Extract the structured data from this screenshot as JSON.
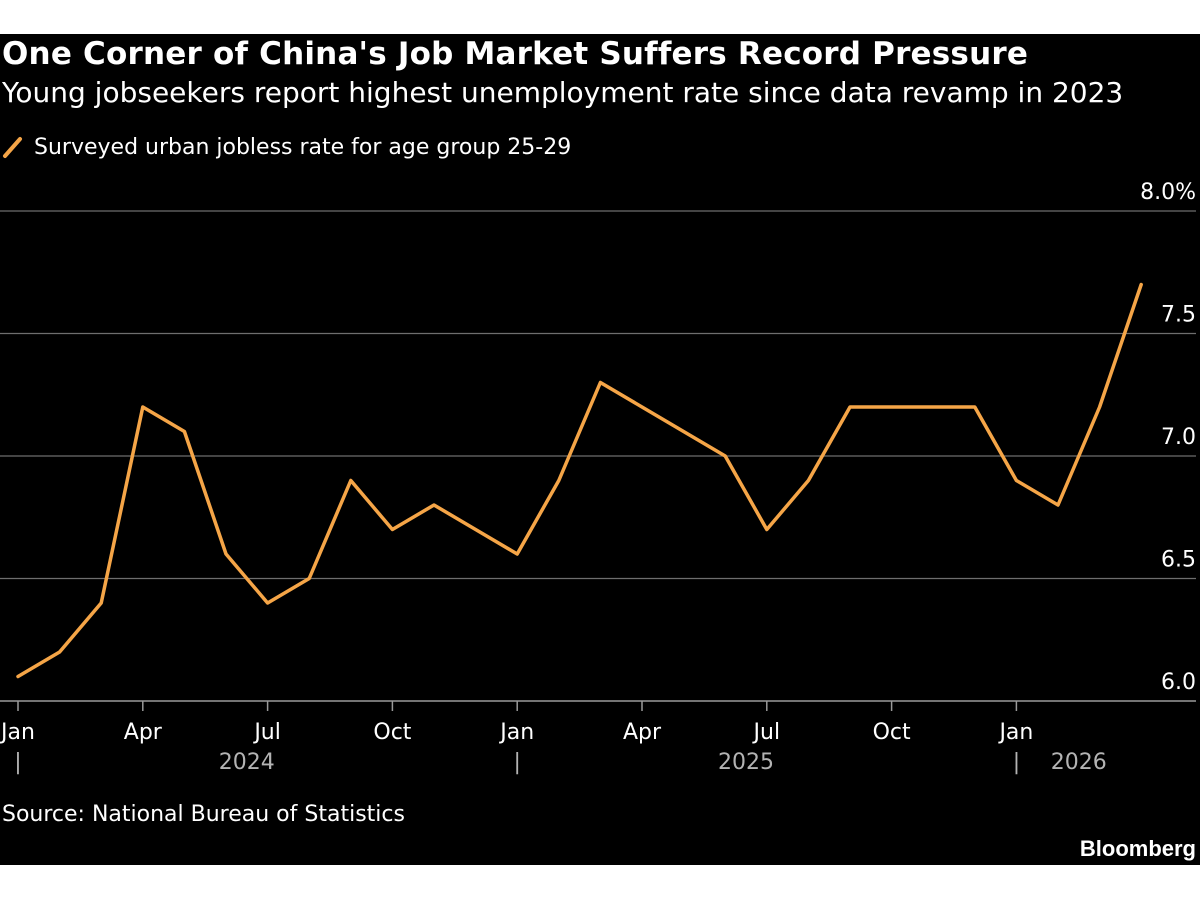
{
  "chart_data": {
    "type": "line",
    "title": "One Corner of China's Job Market Suffers Record Pressure",
    "subtitle": "Young jobseekers report highest unemployment rate since data revamp in 2023",
    "series": [
      {
        "name": "Surveyed urban jobless rate for age group 25-29",
        "color": "#f5a547",
        "x": [
          "2024-01",
          "2024-02",
          "2024-03",
          "2024-04",
          "2024-05",
          "2024-06",
          "2024-07",
          "2024-08",
          "2024-09",
          "2024-10",
          "2024-11",
          "2024-12",
          "2025-01",
          "2025-02",
          "2025-03",
          "2025-04",
          "2025-05",
          "2025-06",
          "2025-07",
          "2025-08",
          "2025-09",
          "2025-10",
          "2025-11",
          "2025-12",
          "2026-01",
          "2026-02",
          "2026-03",
          "2026-04"
        ],
        "values": [
          6.1,
          6.2,
          6.4,
          7.2,
          7.1,
          6.6,
          6.4,
          6.5,
          6.9,
          6.7,
          6.8,
          6.7,
          6.6,
          6.9,
          7.3,
          7.2,
          7.1,
          7.0,
          6.7,
          6.9,
          7.2,
          7.2,
          7.2,
          7.2,
          6.9,
          6.8,
          7.2,
          7.7
        ]
      }
    ],
    "ylim": [
      6.0,
      8.0
    ],
    "yticks": [
      {
        "value": 8.0,
        "label": "8.0%"
      },
      {
        "value": 7.5,
        "label": "7.5"
      },
      {
        "value": 7.0,
        "label": "7.0"
      },
      {
        "value": 6.5,
        "label": "6.5"
      },
      {
        "value": 6.0,
        "label": "6.0"
      }
    ],
    "xticks": [
      {
        "index": 0,
        "label": "Jan"
      },
      {
        "index": 3,
        "label": "Apr"
      },
      {
        "index": 6,
        "label": "Jul"
      },
      {
        "index": 9,
        "label": "Oct"
      },
      {
        "index": 12,
        "label": "Jan"
      },
      {
        "index": 15,
        "label": "Apr"
      },
      {
        "index": 18,
        "label": "Jul"
      },
      {
        "index": 21,
        "label": "Oct"
      },
      {
        "index": 24,
        "label": "Jan"
      }
    ],
    "year_labels": [
      {
        "label": "2024",
        "start_index": 0,
        "end_index": 11
      },
      {
        "label": "2025",
        "start_index": 12,
        "end_index": 23
      },
      {
        "label": "2026",
        "start_index": 24,
        "end_index": 27
      }
    ],
    "year_separator": "|",
    "grid": true,
    "legend_position": "top-left"
  },
  "source": "Source: National Bureau of Statistics",
  "brand": "Bloomberg",
  "colors": {
    "background": "#000000",
    "line": "#f5a547",
    "grid": "#6e6e6e",
    "text": "#ffffff",
    "axis_text": "#b3b3b3"
  }
}
